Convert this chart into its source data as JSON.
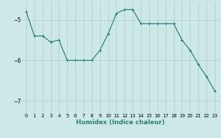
{
  "x": [
    0,
    1,
    2,
    3,
    4,
    5,
    6,
    7,
    8,
    9,
    10,
    11,
    12,
    13,
    14,
    15,
    16,
    17,
    18,
    19,
    20,
    21,
    22,
    23
  ],
  "y": [
    -4.8,
    -5.4,
    -5.4,
    -5.55,
    -5.5,
    -6.0,
    -6.0,
    -6.0,
    -6.0,
    -5.75,
    -5.35,
    -4.85,
    -4.75,
    -4.75,
    -5.1,
    -5.1,
    -5.1,
    -5.1,
    -5.1,
    -5.5,
    -5.75,
    -6.1,
    -6.4,
    -6.75
  ],
  "line_color": "#2e7d72",
  "marker": "+",
  "marker_size": 3,
  "marker_lw": 0.8,
  "line_width": 0.9,
  "bg_color": "#cce9e7",
  "grid_color": "#b0d0ce",
  "xlabel": "Humidex (Indice chaleur)",
  "ylim": [
    -7.3,
    -4.55
  ],
  "xlim": [
    -0.5,
    23.5
  ],
  "yticks": [
    -7,
    -6,
    -5
  ],
  "xtick_labels": [
    "0",
    "1",
    "2",
    "3",
    "4",
    "5",
    "6",
    "7",
    "8",
    "9",
    "10",
    "11",
    "12",
    "13",
    "14",
    "15",
    "16",
    "17",
    "18",
    "19",
    "20",
    "21",
    "22",
    "23"
  ],
  "tick_fontsize": 5.0,
  "ytick_fontsize": 5.5,
  "xlabel_fontsize": 6.5
}
